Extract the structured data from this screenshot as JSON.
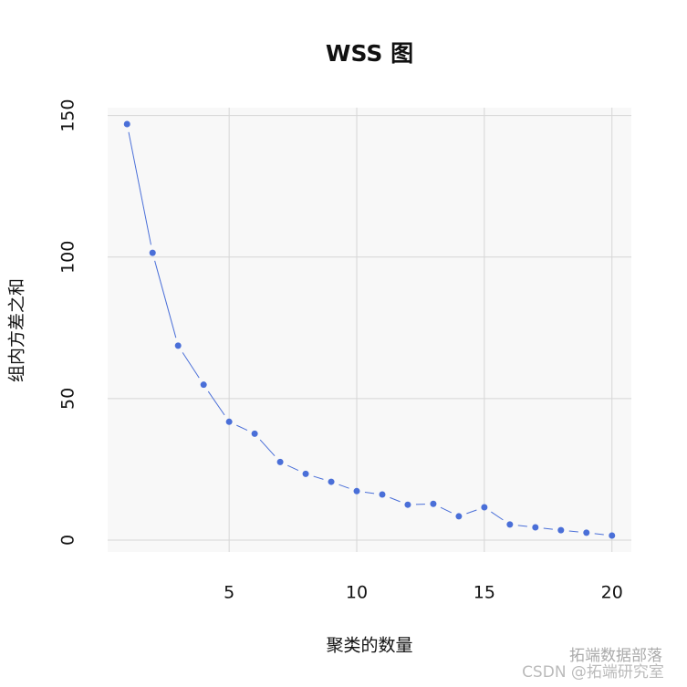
{
  "chart_data": {
    "type": "line",
    "title": "WSS 图",
    "x_label": "聚类的数量",
    "y_label": "组内方差之和",
    "x": [
      1,
      2,
      3,
      4,
      5,
      6,
      7,
      8,
      9,
      10,
      11,
      12,
      13,
      14,
      15,
      16,
      17,
      18,
      19,
      20
    ],
    "series": [
      {
        "name": "WSS",
        "color": "#4a6fd8",
        "values": [
          147,
          101.5,
          68.7,
          54.9,
          41.8,
          37.6,
          27.6,
          23.4,
          20.6,
          17.3,
          16.1,
          12.5,
          12.8,
          8.4,
          11.6,
          5.5,
          4.5,
          3.5,
          2.6,
          1.6
        ]
      }
    ],
    "xlim": [
      0.24,
      20.76
    ],
    "ylim": [
      -4.2,
      152.8
    ],
    "xticks": [
      5,
      10,
      15,
      20
    ],
    "yticks": [
      0,
      50,
      100,
      150
    ],
    "grid": true,
    "annotations": [
      "拓端数据部落",
      "CSDN @拓端研究室"
    ]
  }
}
